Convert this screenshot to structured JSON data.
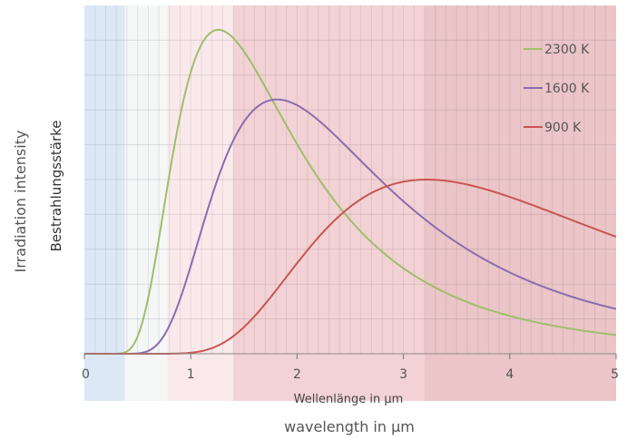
{
  "chart_data": {
    "type": "line",
    "xlabel": "Wellenlänge in µm",
    "xlabel_secondary": "wavelength in µm",
    "ylabel": "Bestrahlungsstärke",
    "ylabel_secondary": "Irradiation intensity",
    "xlim": [
      0,
      5
    ],
    "ylim": [
      0,
      1
    ],
    "x_ticks": [
      "0",
      "1",
      "2",
      "3",
      "4",
      "5"
    ],
    "grid": true,
    "legend_position": "top-right",
    "spectral_bands": [
      {
        "from": 0,
        "to": 0.38,
        "color": "#dce8f6"
      },
      {
        "from": 0.38,
        "to": 0.78,
        "color": "#f4f7f6"
      },
      {
        "from": 0.78,
        "to": 1.4,
        "color": "#fae9eb"
      },
      {
        "from": 1.4,
        "to": 3.2,
        "color": "#f2d2d4"
      },
      {
        "from": 3.2,
        "to": 5,
        "color": "#ebc5c7"
      }
    ],
    "series": [
      {
        "name": "2300 K",
        "temperature": 2300,
        "color": "#9fbe6a",
        "peak_x": 1.26,
        "peak_y": 0.93
      },
      {
        "name": "1600 K",
        "temperature": 1600,
        "color": "#8a6cb0",
        "peak_x": 1.81,
        "peak_y": 0.73
      },
      {
        "name": "900 K",
        "temperature": 900,
        "color": "#c95552",
        "peak_x": 3.22,
        "peak_y": 0.5
      }
    ]
  }
}
